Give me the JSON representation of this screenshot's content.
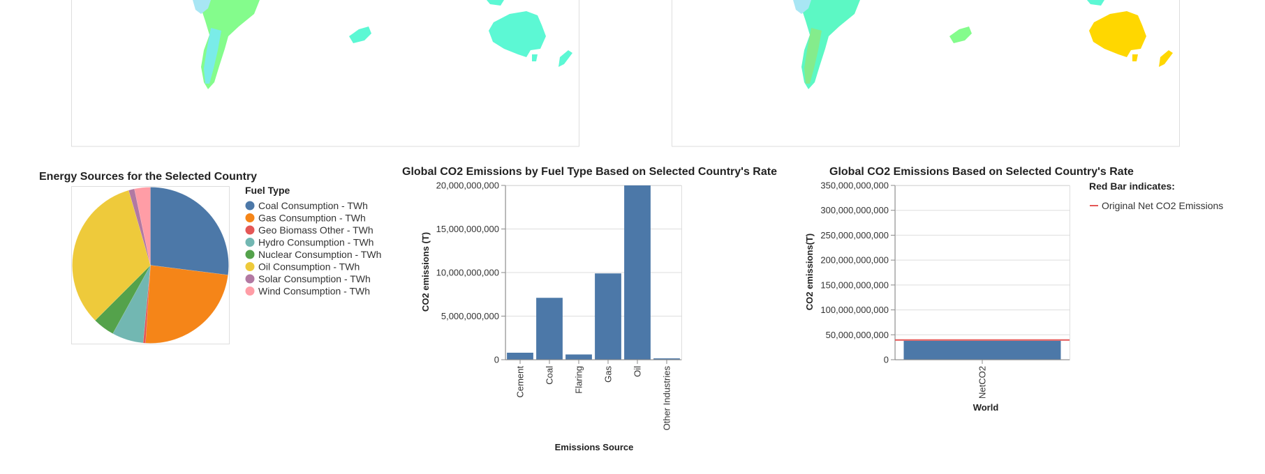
{
  "maps": {
    "left": {
      "continents": [
        "south-america",
        "central-america",
        "oceania"
      ]
    },
    "right": {
      "continents": [
        "south-america",
        "central-america",
        "oceania"
      ]
    }
  },
  "chart_data": [
    {
      "type": "pie",
      "title": "Energy Sources for the Selected Country",
      "legend_title": "Fuel Type",
      "legend_position": "right",
      "slices": [
        {
          "label": "Coal Consumption - TWh",
          "value": 27,
          "color": "#4c78a8"
        },
        {
          "label": "Gas Consumption - TWh",
          "value": 24,
          "color": "#f58518"
        },
        {
          "label": "Geo Biomass Other - TWh",
          "value": 0.5,
          "color": "#e45756"
        },
        {
          "label": "Hydro Consumption - TWh",
          "value": 6.5,
          "color": "#72b7b2"
        },
        {
          "label": "Nuclear Consumption - TWh",
          "value": 4.5,
          "color": "#54a24b"
        },
        {
          "label": "Oil Consumption - TWh",
          "value": 33,
          "color": "#eeca3b"
        },
        {
          "label": "Solar Consumption - TWh",
          "value": 1.2,
          "color": "#b279a2"
        },
        {
          "label": "Wind Consumption - TWh",
          "value": 3.3,
          "color": "#ff9da6"
        }
      ]
    },
    {
      "type": "bar",
      "title": "Global CO2 Emissions by Fuel Type Based on Selected Country's Rate",
      "xlabel": "Emissions Source",
      "ylabel": "CO2 emissions (T)",
      "categories": [
        "Cement",
        "Coal",
        "Flaring",
        "Gas",
        "Oil",
        "Other Industries"
      ],
      "values": [
        800000000,
        7100000000,
        600000000,
        9900000000,
        20000000000,
        150000000
      ],
      "ylim": [
        0,
        20000000000
      ],
      "yticks": [
        "0",
        "5,000,000,000",
        "10,000,000,000",
        "15,000,000,000",
        "20,000,000,000"
      ],
      "ytick_values": [
        0,
        5000000000,
        10000000000,
        15000000000,
        20000000000
      ],
      "bar_color": "#4c78a8",
      "grid": true
    },
    {
      "type": "bar",
      "title": "Global CO2 Emissions Based on Selected Country's Rate",
      "xlabel": "World",
      "ylabel": "CO2 emissions(T)",
      "categories": [
        "NetCO2"
      ],
      "values": [
        38000000000
      ],
      "reference_line": {
        "label": "Original Net CO2 Emissions",
        "value": 39500000000,
        "color": "#e45756"
      },
      "ylim": [
        0,
        350000000000
      ],
      "yticks": [
        "0",
        "50,000,000,000",
        "100,000,000,000",
        "150,000,000,000",
        "200,000,000,000",
        "250,000,000,000",
        "300,000,000,000",
        "350,000,000,000"
      ],
      "ytick_values": [
        0,
        50000000000,
        100000000000,
        150000000000,
        200000000000,
        250000000000,
        300000000000,
        350000000000
      ],
      "legend_title": "Red Bar indicates:",
      "legend_position": "right",
      "bar_color": "#4c78a8",
      "grid": true
    }
  ]
}
